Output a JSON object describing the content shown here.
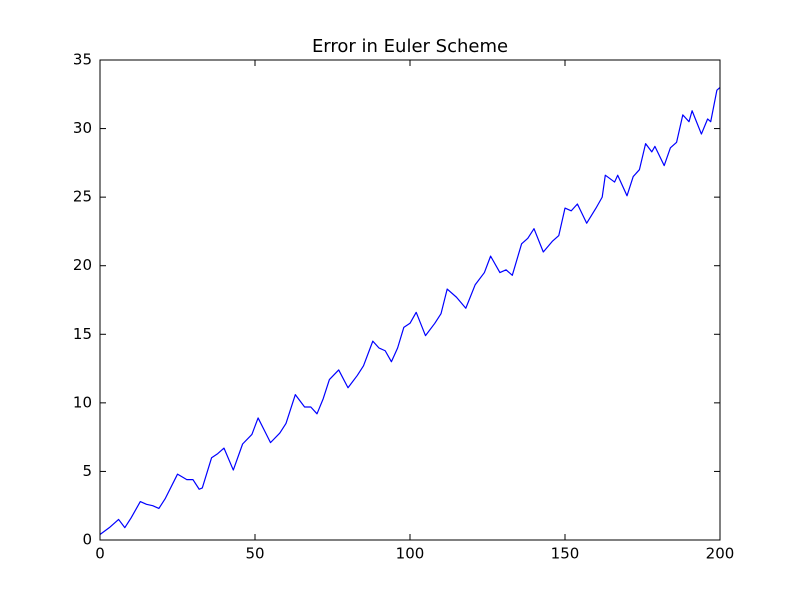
{
  "chart_data": {
    "type": "line",
    "title": "Error in Euler Scheme",
    "x": [
      0,
      3,
      6,
      8,
      10,
      13,
      15,
      17,
      19,
      21,
      25,
      28,
      30,
      32,
      33,
      36,
      38,
      40,
      43,
      46,
      49,
      51,
      53,
      55,
      58,
      60,
      63,
      66,
      68,
      70,
      72,
      74,
      77,
      80,
      83,
      85,
      88,
      90,
      92,
      94,
      96,
      98,
      100,
      102,
      105,
      108,
      110,
      112,
      115,
      118,
      121,
      124,
      126,
      129,
      131,
      133,
      136,
      138,
      140,
      143,
      146,
      148,
      150,
      152,
      154,
      157,
      160,
      162,
      163,
      166,
      167,
      170,
      172,
      174,
      176,
      178,
      179,
      182,
      184,
      186,
      188,
      190,
      191,
      194,
      196,
      197,
      199,
      200
    ],
    "series": [
      {
        "color": "#0000ff",
        "values": [
          0.4,
          0.9,
          1.5,
          0.9,
          1.6,
          2.8,
          2.6,
          2.5,
          2.3,
          3.0,
          4.8,
          4.4,
          4.4,
          3.7,
          3.8,
          6.0,
          6.3,
          6.7,
          5.1,
          7.0,
          7.7,
          8.9,
          8.0,
          7.1,
          7.8,
          8.5,
          10.6,
          9.7,
          9.7,
          9.2,
          10.3,
          11.7,
          12.4,
          11.1,
          12.0,
          12.7,
          14.5,
          14.0,
          13.8,
          13.0,
          14.0,
          15.5,
          15.8,
          16.6,
          14.9,
          15.8,
          16.5,
          18.3,
          17.7,
          16.9,
          18.6,
          19.5,
          20.7,
          19.5,
          19.7,
          19.3,
          21.6,
          22.0,
          22.7,
          21.0,
          21.8,
          22.2,
          24.2,
          24.0,
          24.5,
          23.1,
          24.2,
          25.0,
          26.6,
          26.1,
          26.6,
          25.1,
          26.5,
          27.0,
          28.9,
          28.3,
          28.7,
          27.3,
          28.6,
          29.0,
          31.0,
          30.5,
          31.3,
          29.6,
          30.7,
          30.5,
          32.8,
          33.0
        ]
      }
    ],
    "xlim": [
      0,
      200
    ],
    "xticks": [
      0,
      50,
      100,
      150,
      200
    ],
    "ylim": [
      0,
      35
    ],
    "yticks": [
      0,
      5,
      10,
      15,
      20,
      25,
      30,
      35
    ]
  }
}
